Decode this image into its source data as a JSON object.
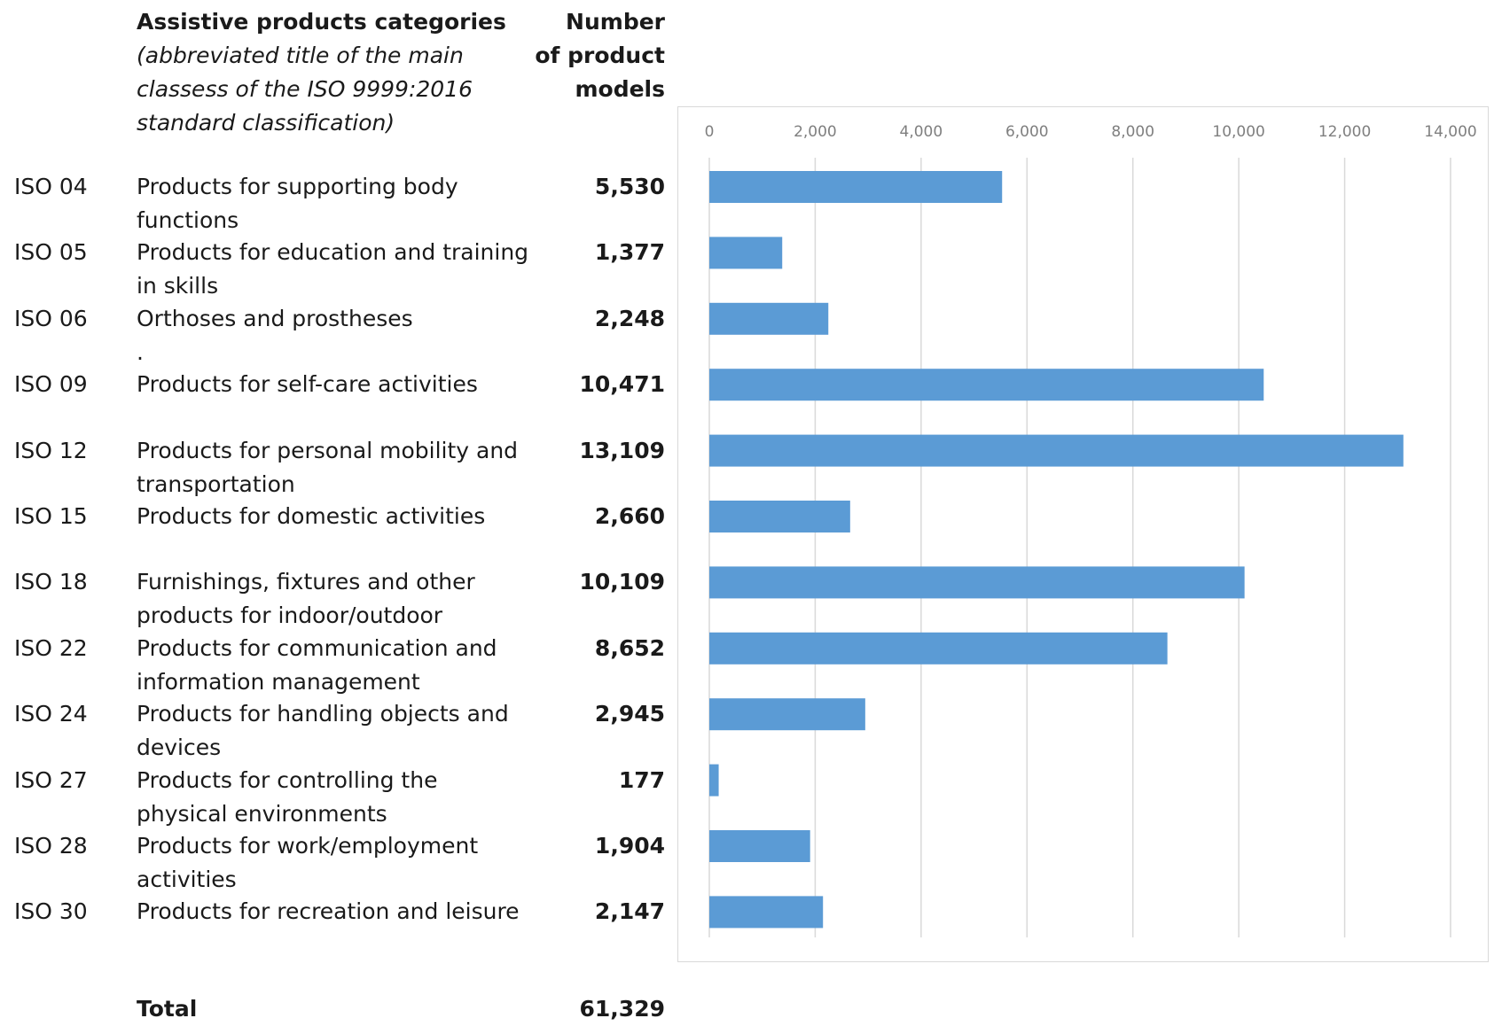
{
  "header": {
    "category_title": "Assistive products categories",
    "category_subtitle": "(abbreviated title of the main classess of the ISO 9999:2016 standard classification)",
    "number_title_line1": "Number",
    "number_title_line2": "of product",
    "number_title_line3": "models"
  },
  "rows": [
    {
      "code": "ISO 04",
      "label": "Products for supporting body functions",
      "value": "5,530"
    },
    {
      "code": "ISO 05",
      "label": "Products for education and training in skills",
      "value": "1,377"
    },
    {
      "code": "ISO 06",
      "label": "Orthoses and prostheses                  .",
      "value": "2,248"
    },
    {
      "code": "ISO 09",
      "label": "Products for self-care activities",
      "value": "10,471"
    },
    {
      "code": "ISO 12",
      "label": "Products for personal mobility and transportation",
      "value": "13,109"
    },
    {
      "code": "ISO 15",
      "label": "Products for domestic activities",
      "value": "2,660"
    },
    {
      "code": "ISO 18",
      "label": "Furnishings, fixtures and other products for indoor/outdoor",
      "value": "10,109"
    },
    {
      "code": "ISO 22",
      "label": "Products for communication and information management",
      "value": "8,652"
    },
    {
      "code": "ISO 24",
      "label": "Products for handling objects and devices",
      "value": "2,945"
    },
    {
      "code": "ISO 27",
      "label": "Products for controlling the physical environments",
      "value": "177"
    },
    {
      "code": "ISO 28",
      "label": "Products for work/employment activities",
      "value": "1,904"
    },
    {
      "code": "ISO 30",
      "label": "Products for recreation and leisure",
      "value": "2,147"
    }
  ],
  "total": {
    "label": "Total",
    "value": "61,329"
  },
  "colors": {
    "bar": "#5b9bd5",
    "grid": "#d9d9d9",
    "tick_text": "#7f7f7f"
  },
  "chart_data": {
    "type": "bar",
    "orientation": "horizontal",
    "categories": [
      "ISO 04",
      "ISO 05",
      "ISO 06",
      "ISO 09",
      "ISO 12",
      "ISO 15",
      "ISO 18",
      "ISO 22",
      "ISO 24",
      "ISO 27",
      "ISO 28",
      "ISO 30"
    ],
    "values": [
      5530,
      1377,
      2248,
      10471,
      13109,
      2660,
      10109,
      8652,
      2945,
      177,
      1904,
      2147
    ],
    "xlim": [
      0,
      14000
    ],
    "xticks": [
      0,
      2000,
      4000,
      6000,
      8000,
      10000,
      12000,
      14000
    ],
    "xtick_labels": [
      "0",
      "2,000",
      "4,000",
      "6,000",
      "8,000",
      "10,000",
      "12,000",
      "14,000"
    ],
    "grid": true,
    "axis_position": "top"
  }
}
